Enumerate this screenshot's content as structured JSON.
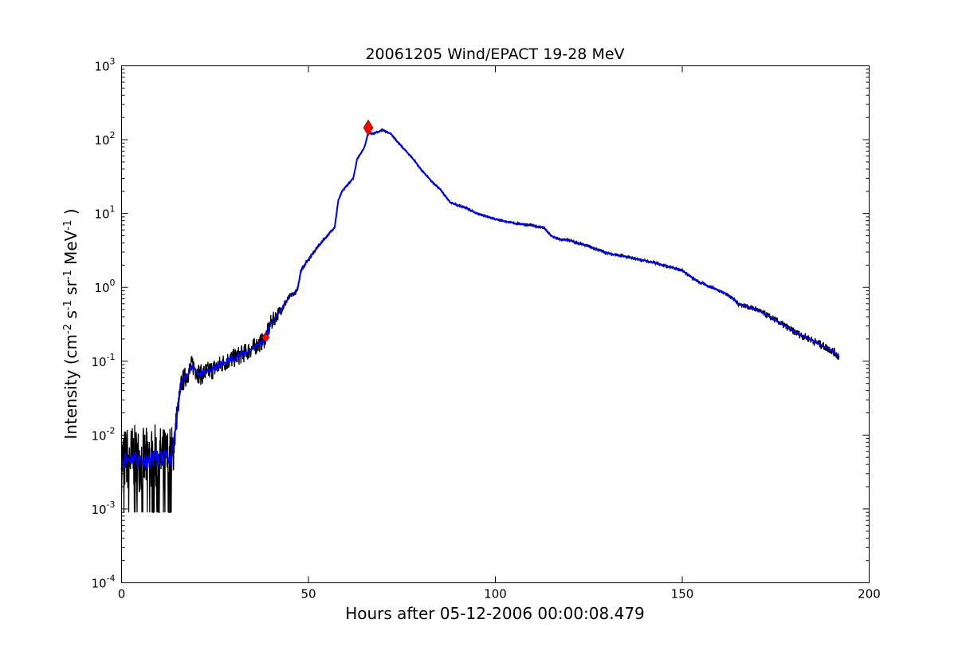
{
  "chart_data": {
    "type": "line",
    "title": "20061205 Wind/EPACT 19-28 MeV",
    "xlabel": "Hours after 05-12-2006 00:00:08.479",
    "ylabel_parts": [
      "Intensity (cm",
      "-2",
      " s",
      "-1",
      " sr",
      "-1",
      " MeV",
      "-1",
      " )"
    ],
    "xlim": [
      0,
      200
    ],
    "ylim": [
      0.0001,
      1000
    ],
    "yscale": "log",
    "grid": false,
    "x_ticks": [
      0,
      50,
      100,
      150,
      200
    ],
    "x_tick_labels": [
      "0",
      "50",
      "100",
      "150",
      "200"
    ],
    "y_ticks": [
      -4,
      -3,
      -2,
      -1,
      0,
      1,
      2,
      3
    ],
    "y_tick_labels": [
      {
        "base": "10",
        "exp": "-4"
      },
      {
        "base": "10",
        "exp": "-3"
      },
      {
        "base": "10",
        "exp": "-2"
      },
      {
        "base": "10",
        "exp": "-1"
      },
      {
        "base": "10",
        "exp": "0"
      },
      {
        "base": "10",
        "exp": "1"
      },
      {
        "base": "10",
        "exp": "2"
      },
      {
        "base": "10",
        "exp": "3"
      }
    ],
    "series": [
      {
        "name": "raw",
        "color": "#000000",
        "note": "noisy raw intensity around the smoothed curve; spread given as log10 half-width per hour range",
        "spread": [
          [
            0,
            0.45
          ],
          [
            13.5,
            0.45
          ],
          [
            15,
            0.15
          ],
          [
            40,
            0.12
          ],
          [
            45,
            0.04
          ],
          [
            60,
            0.01
          ],
          [
            160,
            0.02
          ],
          [
            170,
            0.04
          ],
          [
            192,
            0.06
          ]
        ],
        "floor": 0.0009
      },
      {
        "name": "smoothed",
        "color": "#0000ff",
        "x": [
          0,
          3,
          6,
          9,
          12,
          13.5,
          14,
          15,
          16,
          17,
          19,
          20,
          21,
          23,
          25,
          28,
          30,
          33,
          35,
          38,
          39,
          40,
          42,
          45,
          47,
          48,
          50,
          52,
          55,
          57,
          58,
          59,
          60,
          62,
          63,
          64,
          65,
          66,
          67,
          68,
          70,
          72,
          75,
          78,
          80,
          83,
          85,
          88,
          92,
          95,
          100,
          105,
          110,
          113,
          115,
          117,
          120,
          125,
          130,
          135,
          140,
          145,
          150,
          153,
          155,
          160,
          163,
          165,
          170,
          175,
          180,
          185,
          190,
          192
        ],
        "y": [
          0.0045,
          0.005,
          0.0045,
          0.005,
          0.0045,
          0.005,
          0.008,
          0.022,
          0.05,
          0.06,
          0.09,
          0.075,
          0.065,
          0.072,
          0.08,
          0.1,
          0.11,
          0.13,
          0.15,
          0.19,
          0.24,
          0.33,
          0.45,
          0.75,
          0.9,
          1.7,
          2.4,
          3.3,
          5,
          6.5,
          15,
          20,
          23,
          30,
          55,
          65,
          80,
          125,
          120,
          125,
          135,
          120,
          80,
          55,
          40,
          27,
          22,
          14,
          12,
          10,
          8.4,
          7.4,
          6.9,
          6.4,
          4.9,
          4.5,
          4.3,
          3.6,
          2.9,
          2.6,
          2.3,
          2.0,
          1.7,
          1.3,
          1.15,
          0.9,
          0.75,
          0.6,
          0.5,
          0.36,
          0.25,
          0.19,
          0.14,
          0.115
        ]
      }
    ],
    "markers": [
      {
        "name": "onset",
        "x": 38.5,
        "y": 0.21,
        "color": "#ff0000",
        "size": "small"
      },
      {
        "name": "peak",
        "x": 66,
        "y": 145,
        "color": "#ff0000",
        "size": "large"
      }
    ]
  }
}
